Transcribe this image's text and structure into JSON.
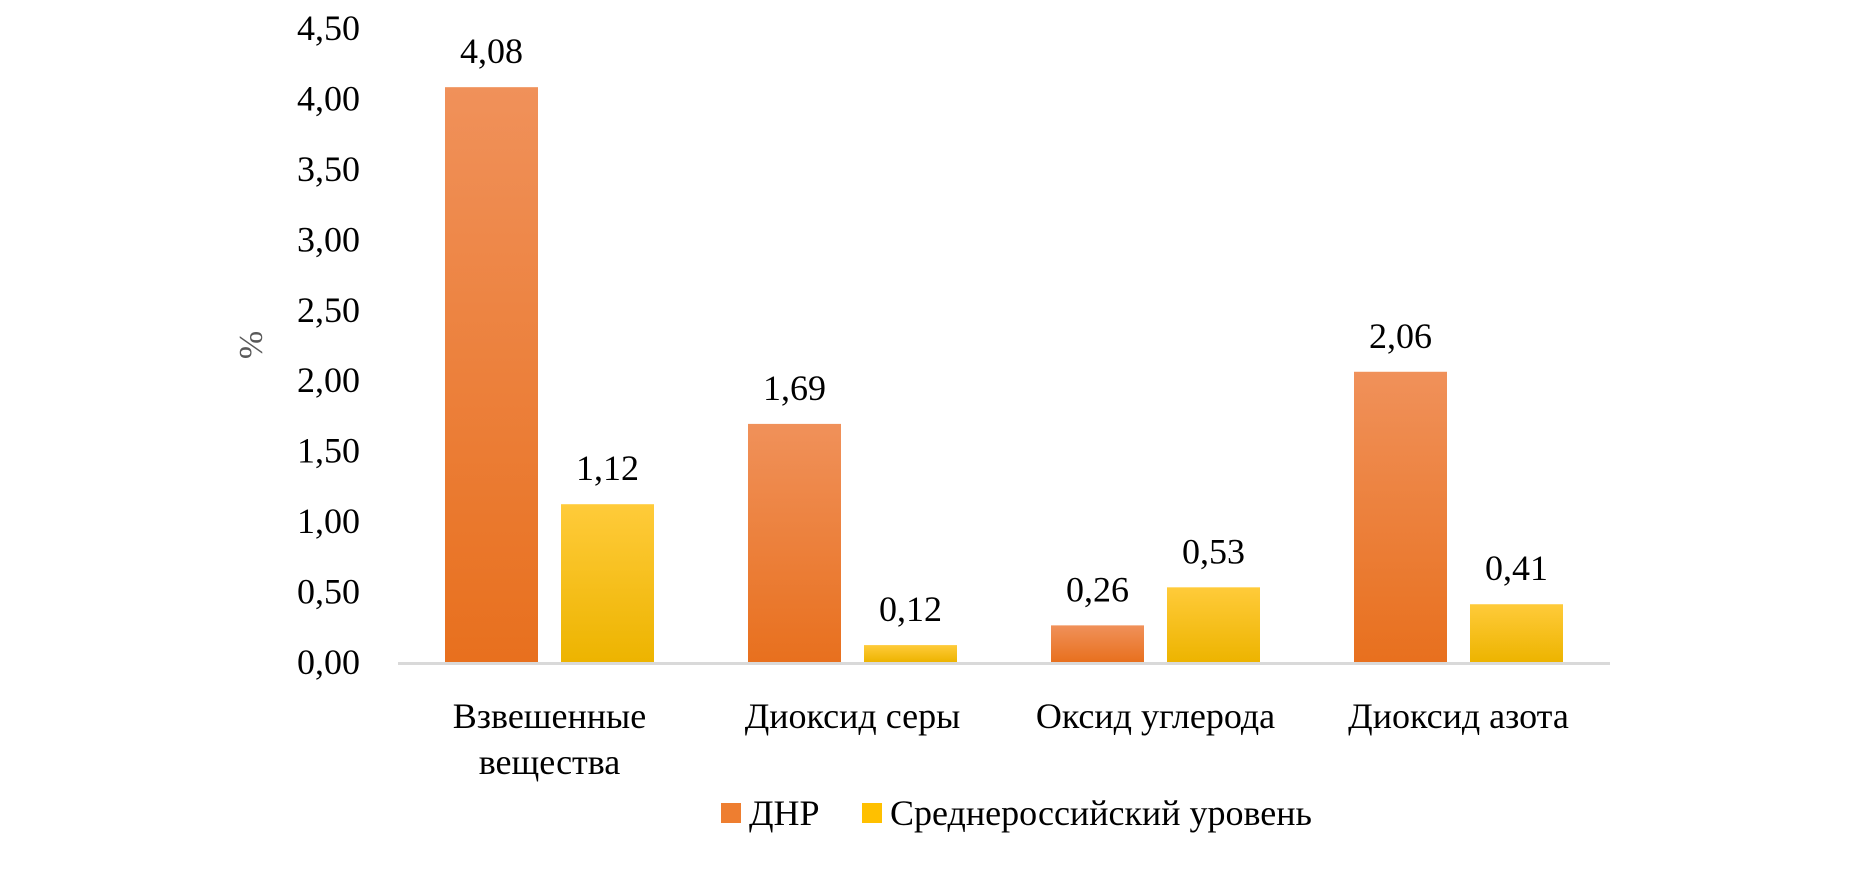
{
  "chart_data": {
    "type": "bar",
    "title": "",
    "xlabel": "",
    "ylabel": "%",
    "ylim": [
      0,
      4.5
    ],
    "yticks": [
      "0,00",
      "0,50",
      "1,00",
      "1,50",
      "2,00",
      "2,50",
      "3,00",
      "3,50",
      "4,00",
      "4,50"
    ],
    "categories": [
      [
        "Взвешенные",
        "вещества"
      ],
      [
        "Диоксид серы"
      ],
      [
        "Оксид углерода"
      ],
      [
        "Диоксид азота"
      ]
    ],
    "series": [
      {
        "name": "ДНР",
        "values": [
          4.08,
          1.69,
          0.26,
          2.06
        ],
        "labels": [
          "4,08",
          "1,69",
          "0,26",
          "2,06"
        ],
        "color_top": "#F0915A",
        "color_bottom": "#E8701E"
      },
      {
        "name": "Среднероссийский уровень",
        "values": [
          1.12,
          0.12,
          0.53,
          0.41
        ],
        "labels": [
          "1,12",
          "0,12",
          "0,53",
          "0,41"
        ],
        "color_top": "#FFCB3A",
        "color_bottom": "#EDB400"
      }
    ],
    "grid": false,
    "legend": "bottom"
  },
  "colors": {
    "axis_line": "#D9D9D9",
    "legend_dnr": "#EE7E30",
    "legend_avg": "#FFC000"
  }
}
